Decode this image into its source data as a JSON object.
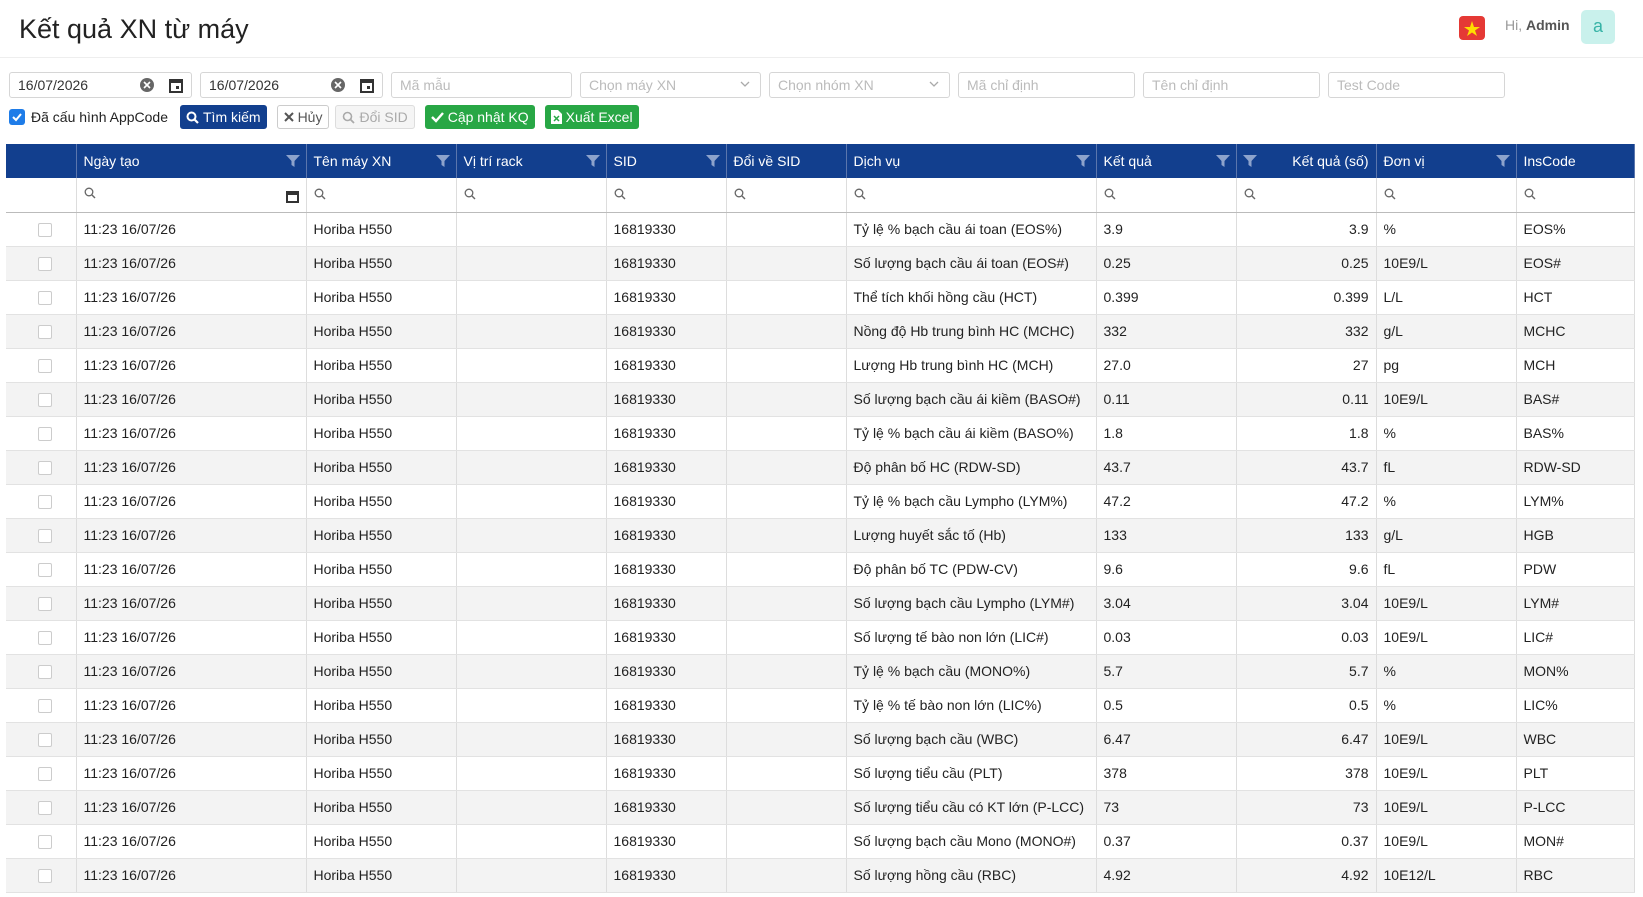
{
  "header": {
    "title": "Kết quả XN từ máy",
    "greeting": "Hi,",
    "user": "Admin",
    "avatar": "a"
  },
  "filters": {
    "date_from": "16/07/2026",
    "date_to": "16/07/2026",
    "placeholders": [
      "Mã mẫu",
      "Chọn máy XN",
      "Chọn nhóm XN",
      "Mã chỉ định",
      "Tên chỉ định",
      "Test Code"
    ],
    "appcode_label": "Đã cấu hình AppCode"
  },
  "buttons": {
    "search": "Tìm kiếm",
    "cancel": "Hủy",
    "change_sid": "Đổi SID",
    "update": "Cập nhật KQ",
    "export": "Xuất Excel"
  },
  "table": {
    "columns": [
      "Ngày tạo",
      "Tên máy XN",
      "Vị trí rack",
      "SID",
      "Đổi về SID",
      "Dịch vụ",
      "Kết quả",
      "Kết quả (số)",
      "Đơn vị",
      "InsCode"
    ],
    "rows": [
      {
        "created": "11:23 16/07/26",
        "machine": "Horiba H550",
        "sid": "16819330",
        "service": "Tỷ lệ % bạch cầu ái toan (EOS%)",
        "result": "3.9",
        "result_num": "3.9",
        "unit": "%",
        "inscode": "EOS%"
      },
      {
        "created": "11:23 16/07/26",
        "machine": "Horiba H550",
        "sid": "16819330",
        "service": "Số lượng bạch cầu ái toan (EOS#)",
        "result": "0.25",
        "result_num": "0.25",
        "unit": "10E9/L",
        "inscode": "EOS#"
      },
      {
        "created": "11:23 16/07/26",
        "machine": "Horiba H550",
        "sid": "16819330",
        "service": "Thể tích khối hồng cầu (HCT)",
        "result": "0.399",
        "result_num": "0.399",
        "unit": "L/L",
        "inscode": "HCT"
      },
      {
        "created": "11:23 16/07/26",
        "machine": "Horiba H550",
        "sid": "16819330",
        "service": "Nồng độ Hb trung bình HC (MCHC)",
        "result": "332",
        "result_num": "332",
        "unit": "g/L",
        "inscode": "MCHC"
      },
      {
        "created": "11:23 16/07/26",
        "machine": "Horiba H550",
        "sid": "16819330",
        "service": "Lượng Hb trung bình HC (MCH)",
        "result": "27.0",
        "result_num": "27",
        "unit": "pg",
        "inscode": "MCH"
      },
      {
        "created": "11:23 16/07/26",
        "machine": "Horiba H550",
        "sid": "16819330",
        "service": "Số lượng bạch cầu ái kiềm (BASO#)",
        "result": "0.11",
        "result_num": "0.11",
        "unit": "10E9/L",
        "inscode": "BAS#"
      },
      {
        "created": "11:23 16/07/26",
        "machine": "Horiba H550",
        "sid": "16819330",
        "service": "Tỷ lệ % bạch cầu ái kiềm (BASO%)",
        "result": "1.8",
        "result_num": "1.8",
        "unit": "%",
        "inscode": "BAS%"
      },
      {
        "created": "11:23 16/07/26",
        "machine": "Horiba H550",
        "sid": "16819330",
        "service": "Độ phân bố HC (RDW-SD)",
        "result": "43.7",
        "result_num": "43.7",
        "unit": "fL",
        "inscode": "RDW-SD"
      },
      {
        "created": "11:23 16/07/26",
        "machine": "Horiba H550",
        "sid": "16819330",
        "service": "Tỷ lệ % bạch cầu Lympho (LYM%)",
        "result": "47.2",
        "result_num": "47.2",
        "unit": "%",
        "inscode": "LYM%"
      },
      {
        "created": "11:23 16/07/26",
        "machine": "Horiba H550",
        "sid": "16819330",
        "service": "Lượng huyết sắc tố (Hb)",
        "result": "133",
        "result_num": "133",
        "unit": "g/L",
        "inscode": "HGB"
      },
      {
        "created": "11:23 16/07/26",
        "machine": "Horiba H550",
        "sid": "16819330",
        "service": "Độ phân bố TC (PDW-CV)",
        "result": "9.6",
        "result_num": "9.6",
        "unit": "fL",
        "inscode": "PDW"
      },
      {
        "created": "11:23 16/07/26",
        "machine": "Horiba H550",
        "sid": "16819330",
        "service": "Số lượng bạch cầu Lympho (LYM#)",
        "result": "3.04",
        "result_num": "3.04",
        "unit": "10E9/L",
        "inscode": "LYM#"
      },
      {
        "created": "11:23 16/07/26",
        "machine": "Horiba H550",
        "sid": "16819330",
        "service": "Số lượng tế bào non lớn (LIC#)",
        "result": "0.03",
        "result_num": "0.03",
        "unit": "10E9/L",
        "inscode": "LIC#"
      },
      {
        "created": "11:23 16/07/26",
        "machine": "Horiba H550",
        "sid": "16819330",
        "service": "Tỷ lệ % bạch cầu (MONO%)",
        "result": "5.7",
        "result_num": "5.7",
        "unit": "%",
        "inscode": "MON%"
      },
      {
        "created": "11:23 16/07/26",
        "machine": "Horiba H550",
        "sid": "16819330",
        "service": "Tỷ lệ % tế bào non lớn (LIC%)",
        "result": "0.5",
        "result_num": "0.5",
        "unit": "%",
        "inscode": "LIC%"
      },
      {
        "created": "11:23 16/07/26",
        "machine": "Horiba H550",
        "sid": "16819330",
        "service": "Số lượng bạch cầu (WBC)",
        "result": "6.47",
        "result_num": "6.47",
        "unit": "10E9/L",
        "inscode": "WBC"
      },
      {
        "created": "11:23 16/07/26",
        "machine": "Horiba H550",
        "sid": "16819330",
        "service": "Số lượng tiểu cầu (PLT)",
        "result": "378",
        "result_num": "378",
        "unit": "10E9/L",
        "inscode": "PLT"
      },
      {
        "created": "11:23 16/07/26",
        "machine": "Horiba H550",
        "sid": "16819330",
        "service": "Số lượng tiểu cầu có KT lớn (P-LCC)",
        "result": "73",
        "result_num": "73",
        "unit": "10E9/L",
        "inscode": "P-LCC"
      },
      {
        "created": "11:23 16/07/26",
        "machine": "Horiba H550",
        "sid": "16819330",
        "service": "Số lượng bạch cầu Mono (MONO#)",
        "result": "0.37",
        "result_num": "0.37",
        "unit": "10E9/L",
        "inscode": "MON#"
      },
      {
        "created": "11:23 16/07/26",
        "machine": "Horiba H550",
        "sid": "16819330",
        "service": "Số lượng hồng cầu (RBC)",
        "result": "4.92",
        "result_num": "4.92",
        "unit": "10E12/L",
        "inscode": "RBC"
      }
    ]
  }
}
